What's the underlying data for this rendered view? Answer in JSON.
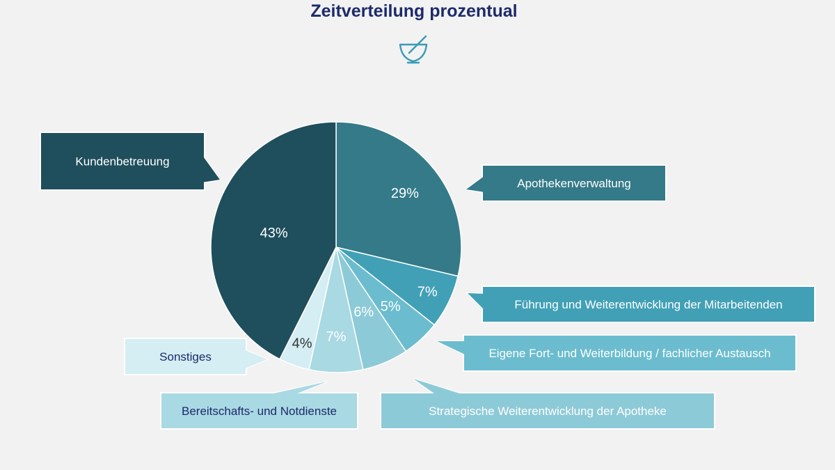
{
  "chart_data": {
    "type": "pie",
    "title": "Zeitverteilung prozentual",
    "unit": "%",
    "slices": [
      {
        "label": "Apothekenverwaltung",
        "value": 29,
        "value_label": "29%",
        "color": "#347a88"
      },
      {
        "label": "Führung und Weiterentwicklung der Mitarbeitenden",
        "value": 7,
        "value_label": "7%",
        "color": "#41a0b6"
      },
      {
        "label": "Eigene Fort- und Weiterbildung / fachlicher Austausch",
        "value": 5,
        "value_label": "5%",
        "color": "#6bbcce"
      },
      {
        "label": "Strategische Weiterentwicklung der Apotheke",
        "value": 6,
        "value_label": "6%",
        "color": "#8dcad7"
      },
      {
        "label": "Bereitschafts- und Notdienste",
        "value": 7,
        "value_label": "7%",
        "color": "#a9d9e3"
      },
      {
        "label": "Sonstiges",
        "value": 4,
        "value_label": "4%",
        "color": "#d4eef3"
      },
      {
        "label": "Kundenbetreuung",
        "value": 43,
        "value_label": "43%",
        "color": "#1f4e5c"
      }
    ],
    "start_angle": "12 o'clock",
    "direction": "clockwise",
    "legend": "callouts"
  },
  "icon": "mortar-pestle-icon",
  "colors": {
    "title": "#1d2a6b",
    "icon": "#3a9ab5",
    "background": "#f2f2f2",
    "dark_text": "#1d2a6b"
  }
}
